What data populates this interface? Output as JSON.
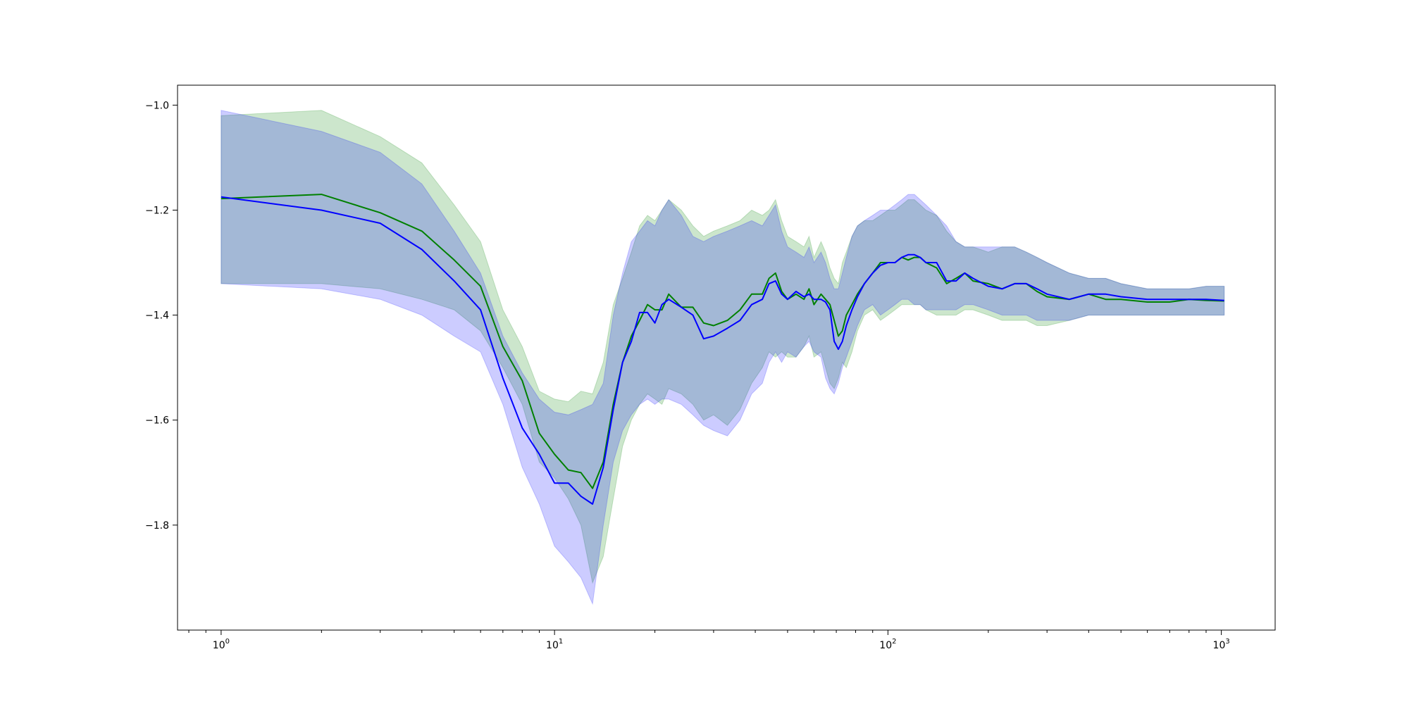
{
  "chart_data": {
    "type": "line",
    "title": "",
    "xlabel": "",
    "ylabel": "",
    "xscale": "log",
    "xlim": [
      0.74,
      1450
    ],
    "ylim": [
      -2.0,
      -0.962
    ],
    "grid": false,
    "legend": "none",
    "x_ticks": [
      {
        "base": "10",
        "exp": "0",
        "value": 1
      },
      {
        "base": "10",
        "exp": "1",
        "value": 10
      },
      {
        "base": "10",
        "exp": "2",
        "value": 100
      },
      {
        "base": "10",
        "exp": "3",
        "value": 1000
      }
    ],
    "y_ticks": [
      {
        "label": "−1.0",
        "value": -1.0
      },
      {
        "label": "−1.2",
        "value": -1.2
      },
      {
        "label": "−1.4",
        "value": -1.4
      },
      {
        "label": "−1.6",
        "value": -1.6
      },
      {
        "label": "−1.8",
        "value": -1.8
      }
    ],
    "series": [
      {
        "color": "#008000",
        "band_color": "#008000",
        "band_opacity": 0.2,
        "x": [
          1,
          2,
          3,
          4,
          5,
          6,
          7,
          8,
          9,
          10,
          11,
          12,
          13,
          14,
          15,
          16,
          17,
          18,
          19,
          20,
          21,
          22,
          24,
          26,
          28,
          30,
          33,
          36,
          39,
          42,
          44,
          46,
          48,
          50,
          53,
          56,
          58,
          60,
          63,
          65,
          67,
          69,
          71,
          73,
          75,
          78,
          81,
          85,
          90,
          95,
          100,
          105,
          110,
          115,
          120,
          125,
          130,
          140,
          150,
          160,
          170,
          180,
          200,
          220,
          240,
          260,
          280,
          300,
          350,
          400,
          450,
          500,
          600,
          700,
          800,
          900,
          1020
        ],
        "y": [
          -1.178,
          -1.17,
          -1.205,
          -1.24,
          -1.295,
          -1.345,
          -1.46,
          -1.525,
          -1.625,
          -1.665,
          -1.695,
          -1.7,
          -1.73,
          -1.68,
          -1.57,
          -1.49,
          -1.44,
          -1.41,
          -1.38,
          -1.39,
          -1.39,
          -1.36,
          -1.385,
          -1.385,
          -1.415,
          -1.42,
          -1.41,
          -1.39,
          -1.36,
          -1.36,
          -1.33,
          -1.32,
          -1.355,
          -1.37,
          -1.36,
          -1.37,
          -1.35,
          -1.38,
          -1.36,
          -1.37,
          -1.38,
          -1.41,
          -1.44,
          -1.43,
          -1.4,
          -1.38,
          -1.36,
          -1.34,
          -1.32,
          -1.3,
          -1.3,
          -1.3,
          -1.29,
          -1.295,
          -1.29,
          -1.29,
          -1.3,
          -1.31,
          -1.34,
          -1.33,
          -1.32,
          -1.335,
          -1.34,
          -1.35,
          -1.34,
          -1.34,
          -1.355,
          -1.365,
          -1.37,
          -1.36,
          -1.37,
          -1.37,
          -1.375,
          -1.375,
          -1.37,
          -1.372,
          -1.373
        ],
        "lower": [
          -1.34,
          -1.34,
          -1.35,
          -1.37,
          -1.39,
          -1.43,
          -1.5,
          -1.57,
          -1.68,
          -1.71,
          -1.75,
          -1.8,
          -1.91,
          -1.86,
          -1.75,
          -1.65,
          -1.6,
          -1.57,
          -1.55,
          -1.56,
          -1.57,
          -1.54,
          -1.55,
          -1.57,
          -1.6,
          -1.59,
          -1.61,
          -1.58,
          -1.53,
          -1.5,
          -1.47,
          -1.48,
          -1.47,
          -1.48,
          -1.48,
          -1.46,
          -1.44,
          -1.48,
          -1.47,
          -1.5,
          -1.53,
          -1.54,
          -1.52,
          -1.49,
          -1.5,
          -1.47,
          -1.43,
          -1.4,
          -1.39,
          -1.41,
          -1.4,
          -1.39,
          -1.38,
          -1.38,
          -1.38,
          -1.38,
          -1.39,
          -1.4,
          -1.4,
          -1.4,
          -1.39,
          -1.39,
          -1.4,
          -1.41,
          -1.41,
          -1.41,
          -1.42,
          -1.42,
          -1.41,
          -1.4,
          -1.4,
          -1.4,
          -1.4,
          -1.4,
          -1.4,
          -1.4,
          -1.4
        ],
        "upper": [
          -1.02,
          -1.01,
          -1.06,
          -1.11,
          -1.19,
          -1.26,
          -1.39,
          -1.46,
          -1.545,
          -1.56,
          -1.565,
          -1.545,
          -1.55,
          -1.49,
          -1.38,
          -1.33,
          -1.28,
          -1.23,
          -1.21,
          -1.22,
          -1.2,
          -1.18,
          -1.2,
          -1.23,
          -1.25,
          -1.24,
          -1.23,
          -1.22,
          -1.2,
          -1.21,
          -1.2,
          -1.18,
          -1.22,
          -1.25,
          -1.26,
          -1.27,
          -1.25,
          -1.29,
          -1.26,
          -1.28,
          -1.31,
          -1.33,
          -1.34,
          -1.3,
          -1.28,
          -1.25,
          -1.23,
          -1.22,
          -1.22,
          -1.21,
          -1.2,
          -1.2,
          -1.19,
          -1.18,
          -1.18,
          -1.19,
          -1.2,
          -1.21,
          -1.24,
          -1.26,
          -1.27,
          -1.27,
          -1.28,
          -1.27,
          -1.27,
          -1.28,
          -1.29,
          -1.3,
          -1.32,
          -1.33,
          -1.33,
          -1.34,
          -1.35,
          -1.35,
          -1.35,
          -1.345,
          -1.345
        ]
      },
      {
        "color": "#0000ff",
        "band_color": "#0000ff",
        "band_opacity": 0.2,
        "x": [
          1,
          2,
          3,
          4,
          5,
          6,
          7,
          8,
          9,
          10,
          11,
          12,
          13,
          14,
          15,
          16,
          17,
          18,
          19,
          20,
          21,
          22,
          24,
          26,
          28,
          30,
          33,
          36,
          39,
          42,
          44,
          46,
          48,
          50,
          53,
          56,
          58,
          60,
          63,
          65,
          67,
          69,
          71,
          73,
          75,
          78,
          81,
          85,
          90,
          95,
          100,
          105,
          110,
          115,
          120,
          125,
          130,
          140,
          150,
          160,
          170,
          180,
          200,
          220,
          240,
          260,
          280,
          300,
          350,
          400,
          450,
          500,
          600,
          700,
          800,
          900,
          1020
        ],
        "y": [
          -1.175,
          -1.2,
          -1.225,
          -1.275,
          -1.335,
          -1.39,
          -1.52,
          -1.615,
          -1.665,
          -1.72,
          -1.72,
          -1.745,
          -1.76,
          -1.69,
          -1.58,
          -1.49,
          -1.45,
          -1.395,
          -1.395,
          -1.415,
          -1.38,
          -1.37,
          -1.385,
          -1.4,
          -1.445,
          -1.44,
          -1.425,
          -1.41,
          -1.38,
          -1.37,
          -1.34,
          -1.335,
          -1.36,
          -1.37,
          -1.355,
          -1.365,
          -1.36,
          -1.37,
          -1.37,
          -1.375,
          -1.39,
          -1.45,
          -1.465,
          -1.45,
          -1.42,
          -1.39,
          -1.365,
          -1.34,
          -1.32,
          -1.305,
          -1.3,
          -1.3,
          -1.29,
          -1.285,
          -1.285,
          -1.29,
          -1.3,
          -1.3,
          -1.335,
          -1.335,
          -1.32,
          -1.33,
          -1.345,
          -1.35,
          -1.34,
          -1.34,
          -1.35,
          -1.36,
          -1.37,
          -1.36,
          -1.36,
          -1.365,
          -1.37,
          -1.37,
          -1.37,
          -1.37,
          -1.372
        ],
        "lower": [
          -1.34,
          -1.35,
          -1.37,
          -1.4,
          -1.44,
          -1.47,
          -1.57,
          -1.69,
          -1.76,
          -1.84,
          -1.87,
          -1.9,
          -1.95,
          -1.8,
          -1.68,
          -1.62,
          -1.59,
          -1.57,
          -1.56,
          -1.57,
          -1.56,
          -1.56,
          -1.57,
          -1.59,
          -1.61,
          -1.62,
          -1.63,
          -1.6,
          -1.55,
          -1.53,
          -1.49,
          -1.47,
          -1.49,
          -1.47,
          -1.48,
          -1.46,
          -1.45,
          -1.47,
          -1.48,
          -1.52,
          -1.54,
          -1.55,
          -1.53,
          -1.5,
          -1.48,
          -1.45,
          -1.42,
          -1.39,
          -1.38,
          -1.4,
          -1.39,
          -1.38,
          -1.37,
          -1.37,
          -1.38,
          -1.38,
          -1.39,
          -1.39,
          -1.39,
          -1.39,
          -1.38,
          -1.38,
          -1.39,
          -1.4,
          -1.4,
          -1.4,
          -1.41,
          -1.41,
          -1.41,
          -1.4,
          -1.4,
          -1.4,
          -1.4,
          -1.4,
          -1.4,
          -1.4,
          -1.4
        ],
        "upper": [
          -1.01,
          -1.05,
          -1.09,
          -1.15,
          -1.24,
          -1.32,
          -1.44,
          -1.51,
          -1.56,
          -1.585,
          -1.59,
          -1.58,
          -1.57,
          -1.53,
          -1.4,
          -1.32,
          -1.26,
          -1.24,
          -1.22,
          -1.23,
          -1.2,
          -1.18,
          -1.21,
          -1.25,
          -1.26,
          -1.25,
          -1.24,
          -1.23,
          -1.22,
          -1.23,
          -1.21,
          -1.19,
          -1.24,
          -1.27,
          -1.28,
          -1.29,
          -1.27,
          -1.3,
          -1.28,
          -1.3,
          -1.33,
          -1.35,
          -1.35,
          -1.32,
          -1.29,
          -1.25,
          -1.23,
          -1.22,
          -1.21,
          -1.2,
          -1.2,
          -1.19,
          -1.18,
          -1.17,
          -1.17,
          -1.18,
          -1.19,
          -1.21,
          -1.23,
          -1.26,
          -1.27,
          -1.27,
          -1.27,
          -1.27,
          -1.27,
          -1.28,
          -1.29,
          -1.3,
          -1.32,
          -1.33,
          -1.33,
          -1.34,
          -1.35,
          -1.35,
          -1.35,
          -1.345,
          -1.345
        ]
      }
    ]
  }
}
